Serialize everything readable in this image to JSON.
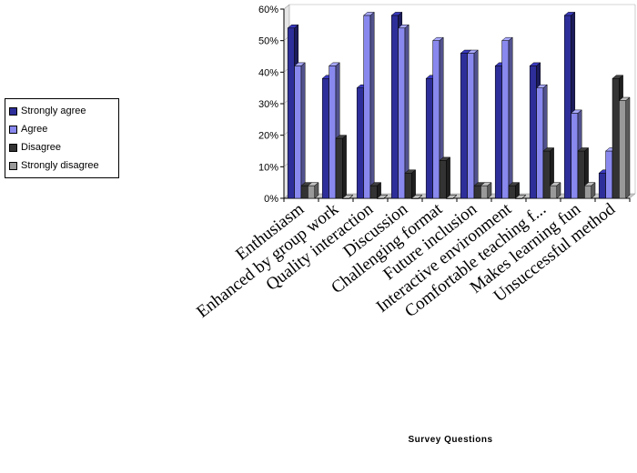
{
  "chart_data": {
    "type": "bar",
    "title": "",
    "xlabel": "Survey Questions",
    "ylabel": "",
    "ylim": [
      0,
      60
    ],
    "ytick_labels": [
      "0%",
      "10%",
      "20%",
      "30%",
      "40%",
      "50%",
      "60%"
    ],
    "y_ticks": [
      0,
      10,
      20,
      30,
      40,
      50,
      60
    ],
    "grid": false,
    "legend_position": "left",
    "style": "3d-clustered",
    "categories": [
      "Enthusiasm",
      "Enhanced by group work",
      "Quality interaction",
      "Discussion",
      "Challenging format",
      "Future inclusion",
      "Interactive environment",
      "Comfortable teaching f...",
      "Makes learning fun",
      "Unsuccessful method"
    ],
    "series": [
      {
        "name": "Strongly agree",
        "color": "#2e2e9a",
        "values": [
          54,
          38,
          35,
          58,
          38,
          46,
          42,
          42,
          58,
          8
        ]
      },
      {
        "name": "Agree",
        "color": "#8888ee",
        "values": [
          42,
          42,
          58,
          54,
          50,
          46,
          50,
          35,
          27,
          15
        ]
      },
      {
        "name": "Disagree",
        "color": "#333333",
        "values": [
          4,
          19,
          4,
          8,
          12,
          4,
          4,
          15,
          15,
          38
        ]
      },
      {
        "name": "Strongly disagree",
        "color": "#999999",
        "values": [
          4,
          0,
          0,
          0,
          0,
          4,
          0,
          4,
          4,
          31
        ]
      }
    ]
  }
}
